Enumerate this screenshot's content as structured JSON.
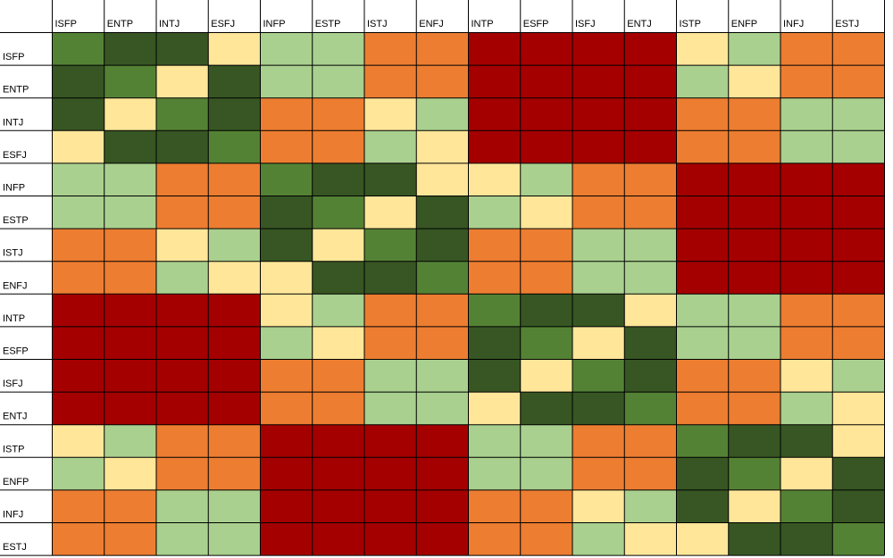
{
  "chart_data": {
    "type": "heatmap",
    "title": "",
    "xlabel": "",
    "ylabel": "",
    "columns": [
      "ISFP",
      "ENTP",
      "INTJ",
      "ESFJ",
      "INFP",
      "ESTP",
      "ISTJ",
      "ENFJ",
      "INTP",
      "ESFP",
      "ISFJ",
      "ENTJ",
      "ISTP",
      "ENFP",
      "INFJ",
      "ESTJ"
    ],
    "rows": [
      "ISFP",
      "ENTP",
      "INTJ",
      "ESFJ",
      "INFP",
      "ESTP",
      "ISTJ",
      "ENFJ",
      "INTP",
      "ESFP",
      "ISFJ",
      "ENTJ",
      "ISTP",
      "ENFP",
      "INFJ",
      "ESTJ"
    ],
    "level_colors": {
      "1": "#a50000",
      "2": "#ed7d31",
      "3": "#ffe699",
      "4": "#a9d08e",
      "5": "#548235",
      "6": "#375623"
    },
    "values": [
      [
        5,
        6,
        6,
        3,
        4,
        4,
        2,
        2,
        1,
        1,
        1,
        1,
        3,
        4,
        2,
        2
      ],
      [
        6,
        5,
        3,
        6,
        4,
        4,
        2,
        2,
        1,
        1,
        1,
        1,
        4,
        3,
        2,
        2
      ],
      [
        6,
        3,
        5,
        6,
        2,
        2,
        3,
        4,
        1,
        1,
        1,
        1,
        2,
        2,
        4,
        4
      ],
      [
        3,
        6,
        6,
        5,
        2,
        2,
        4,
        3,
        1,
        1,
        1,
        1,
        2,
        2,
        4,
        4
      ],
      [
        4,
        4,
        2,
        2,
        5,
        6,
        6,
        3,
        3,
        4,
        2,
        2,
        1,
        1,
        1,
        1
      ],
      [
        4,
        4,
        2,
        2,
        6,
        5,
        3,
        6,
        4,
        3,
        2,
        2,
        1,
        1,
        1,
        1
      ],
      [
        2,
        2,
        3,
        4,
        6,
        3,
        5,
        6,
        2,
        2,
        4,
        4,
        1,
        1,
        1,
        1
      ],
      [
        2,
        2,
        4,
        3,
        3,
        6,
        6,
        5,
        2,
        2,
        4,
        4,
        1,
        1,
        1,
        1
      ],
      [
        1,
        1,
        1,
        1,
        3,
        4,
        2,
        2,
        5,
        6,
        6,
        3,
        4,
        4,
        2,
        2
      ],
      [
        1,
        1,
        1,
        1,
        4,
        3,
        2,
        2,
        6,
        5,
        3,
        6,
        4,
        4,
        2,
        2
      ],
      [
        1,
        1,
        1,
        1,
        2,
        2,
        4,
        4,
        6,
        3,
        5,
        6,
        2,
        2,
        3,
        4
      ],
      [
        1,
        1,
        1,
        1,
        2,
        2,
        4,
        4,
        3,
        6,
        6,
        5,
        2,
        2,
        4,
        3
      ],
      [
        3,
        4,
        2,
        2,
        1,
        1,
        1,
        1,
        4,
        4,
        2,
        2,
        5,
        6,
        6,
        3
      ],
      [
        4,
        3,
        2,
        2,
        1,
        1,
        1,
        1,
        4,
        4,
        2,
        2,
        6,
        5,
        3,
        6
      ],
      [
        2,
        2,
        4,
        4,
        1,
        1,
        1,
        1,
        2,
        2,
        3,
        4,
        6,
        3,
        5,
        6
      ],
      [
        2,
        2,
        4,
        4,
        1,
        1,
        1,
        1,
        2,
        2,
        4,
        3,
        3,
        6,
        6,
        5
      ]
    ]
  }
}
